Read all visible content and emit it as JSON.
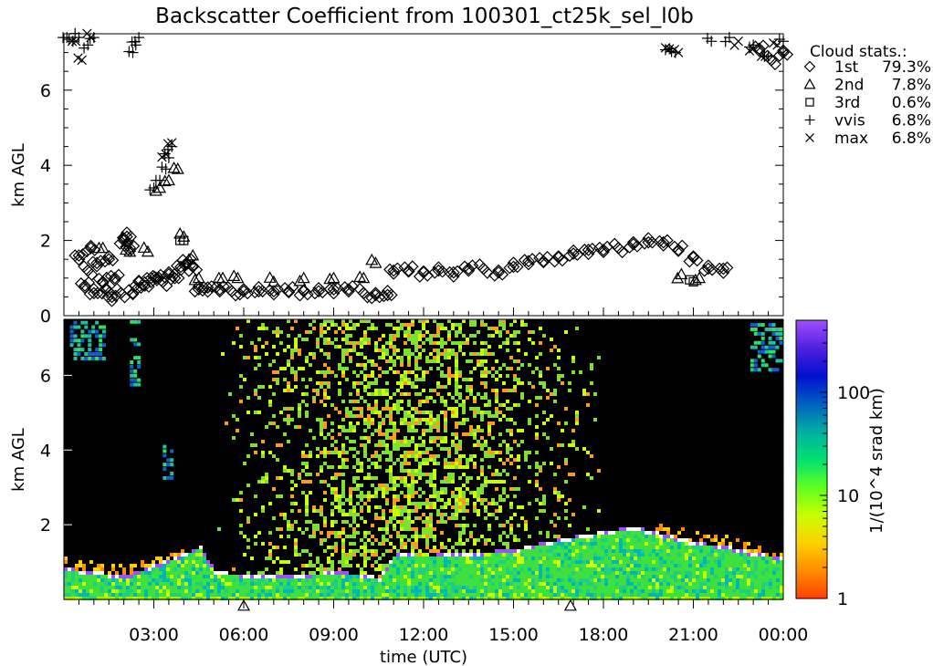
{
  "chart_data": [
    {
      "type": "scatter",
      "title": "Backscatter Coefficient from 100301_ct25k_sel_l0b",
      "ylabel": "km AGL",
      "ylim": [
        0,
        7.5
      ],
      "y_ticks": [
        "0",
        "2",
        "4",
        "6"
      ],
      "x_range_hours": [
        0,
        24
      ],
      "legend": {
        "title": "Cloud stats.:",
        "entries": [
          {
            "marker": "diamond",
            "name": "1st",
            "pct": "79.3%"
          },
          {
            "marker": "triangle",
            "name": "2nd",
            "pct": "7.8%"
          },
          {
            "marker": "square",
            "name": "3rd",
            "pct": "0.6%"
          },
          {
            "marker": "plus",
            "name": "vvis",
            "pct": "6.8%"
          },
          {
            "marker": "x",
            "name": "max",
            "pct": "6.8%"
          }
        ]
      },
      "series": [
        {
          "name": "1st",
          "marker": "diamond",
          "x": [
            0.5,
            0.7,
            0.8,
            0.9,
            1.0,
            1.1,
            1.3,
            1.4,
            1.5,
            1.6,
            1.7,
            1.9,
            2.0,
            2.1,
            2.2,
            2.3,
            2.5,
            2.7,
            2.9,
            3.1,
            3.3,
            3.5,
            3.7,
            3.9,
            4.1,
            4.3,
            4.5,
            4.8,
            5.2,
            5.6,
            6.0,
            6.5,
            7.0,
            7.5,
            8.0,
            8.5,
            9.0,
            9.5,
            10.0,
            10.4,
            10.8,
            11.0,
            11.5,
            12.0,
            12.5,
            13.0,
            13.5,
            14.0,
            14.5,
            15.0,
            15.5,
            16.0,
            16.5,
            17.0,
            17.5,
            18.0,
            18.5,
            19.0,
            19.5,
            20.0,
            20.5,
            21.0,
            21.5,
            22.0,
            23.2,
            23.6,
            24.0
          ],
          "y": [
            1.6,
            0.8,
            1.2,
            1.8,
            0.6,
            1.4,
            0.9,
            0.7,
            1.5,
            0.5,
            1.0,
            0.6,
            2.0,
            2.1,
            1.8,
            0.6,
            0.9,
            0.8,
            1.0,
            1.0,
            0.9,
            1.1,
            1.0,
            1.3,
            1.4,
            1.3,
            0.7,
            0.75,
            0.7,
            0.65,
            0.65,
            0.65,
            0.65,
            0.65,
            0.65,
            0.65,
            0.7,
            0.7,
            0.6,
            0.55,
            0.55,
            1.2,
            1.2,
            1.15,
            1.2,
            1.15,
            1.25,
            1.25,
            1.15,
            1.3,
            1.45,
            1.45,
            1.55,
            1.65,
            1.75,
            1.75,
            1.8,
            1.9,
            1.95,
            1.95,
            1.75,
            1.55,
            1.25,
            1.25,
            7.1,
            6.8,
            7.0
          ]
        },
        {
          "name": "2nd",
          "marker": "triangle",
          "x": [
            1.3,
            2.2,
            2.8,
            3.2,
            3.5,
            3.8,
            4.0,
            4.3,
            4.5,
            5.3,
            5.8,
            7.0,
            8.0,
            9.0,
            10.0,
            10.4,
            20.6,
            21.2
          ],
          "y": [
            1.8,
            1.7,
            1.7,
            3.4,
            3.6,
            3.9,
            2.1,
            1.6,
            1.0,
            1.0,
            1.0,
            0.9,
            1.0,
            1.0,
            1.0,
            1.4,
            1.1,
            1.0
          ]
        },
        {
          "name": "3rd",
          "marker": "square",
          "x": [
            4.0,
            21.0
          ],
          "y": [
            2.0,
            0.9
          ]
        },
        {
          "name": "vvis",
          "marker": "plus",
          "x": [
            0.1,
            0.3,
            0.5,
            0.8,
            1.0,
            2.3,
            2.4,
            2.5,
            3.0,
            3.2,
            3.4,
            3.5,
            3.6,
            20.2,
            20.4,
            21.6,
            22.2,
            23.0,
            23.5,
            24.0
          ],
          "y": [
            7.4,
            7.3,
            7.4,
            7.2,
            7.4,
            7.0,
            7.2,
            7.4,
            3.4,
            3.6,
            3.9,
            4.2,
            4.5,
            7.1,
            7.0,
            7.3,
            7.4,
            7.2,
            6.9,
            7.3
          ]
        },
        {
          "name": "max",
          "marker": "x",
          "x": [
            0.4,
            0.6,
            0.9,
            3.4,
            3.6,
            20.2,
            20.5,
            22.5,
            23.0,
            23.4,
            23.8
          ],
          "y": [
            7.3,
            6.8,
            7.4,
            4.3,
            4.6,
            7.1,
            7.0,
            7.3,
            7.1,
            6.9,
            7.2
          ]
        }
      ],
      "grid": false
    },
    {
      "type": "heatmap",
      "ylabel": "km AGL",
      "xlabel": "time (UTC)",
      "ylim": [
        0,
        7.5
      ],
      "y_ticks": [
        "2",
        "4",
        "6"
      ],
      "x_ticks": [
        "03:00",
        "06:00",
        "09:00",
        "12:00",
        "15:00",
        "18:00",
        "21:00",
        "00:00"
      ],
      "x_tick_hours": [
        3,
        6,
        9,
        12,
        15,
        18,
        21,
        24
      ],
      "colorbar": {
        "label": "1/(10^4 srad km)",
        "scale": "log",
        "range": [
          1,
          500
        ],
        "tick_labels": [
          "1",
          "10",
          "100"
        ],
        "tick_values": [
          1,
          10,
          100
        ],
        "colors": [
          "#ff4000",
          "#ff8c00",
          "#ffd000",
          "#c8ff00",
          "#60ff20",
          "#00e070",
          "#00b0a0",
          "#0060c0",
          "#0010d0",
          "#5020e0",
          "#a050ff"
        ]
      },
      "cloud_base_hours": [
        0,
        1,
        2,
        3,
        4,
        4.5,
        5,
        6,
        7,
        8,
        9,
        10,
        10.5,
        11,
        12,
        13,
        14,
        15,
        16,
        17,
        18,
        19,
        20,
        21,
        22,
        23,
        24
      ],
      "cloud_base_km": [
        0.8,
        0.7,
        0.6,
        0.9,
        1.2,
        1.4,
        0.7,
        0.65,
        0.65,
        0.65,
        0.7,
        0.65,
        0.55,
        1.2,
        1.15,
        1.2,
        1.25,
        1.3,
        1.5,
        1.65,
        1.8,
        1.9,
        1.7,
        1.5,
        1.4,
        1.2,
        1.1
      ],
      "off_axis_markers_hours": [
        6.0,
        16.9
      ],
      "grid": false
    }
  ]
}
